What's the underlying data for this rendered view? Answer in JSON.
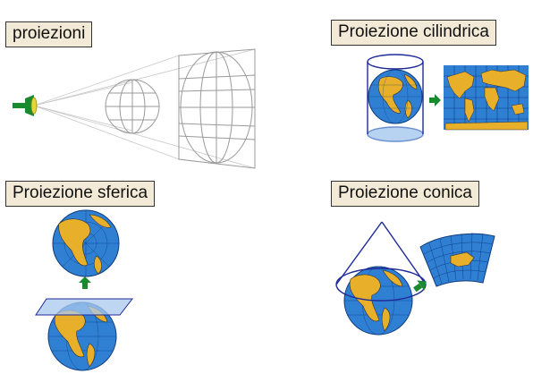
{
  "labels": {
    "proiezioni": "proiezioni",
    "cilindrica": "Proiezione cilindrica",
    "sferica": "Proiezione sferica",
    "conica": "Proiezione conica"
  },
  "colors": {
    "label_bg": "#f2ead6",
    "ocean": "#2f7fd3",
    "land": "#e8b02a",
    "arrow": "#1a8a2e",
    "plane": "#a9c8ef",
    "cylinder_edge": "#1f2a9a"
  },
  "icons": [
    "projector-icon",
    "arrow-right-icon",
    "arrow-up-icon"
  ]
}
